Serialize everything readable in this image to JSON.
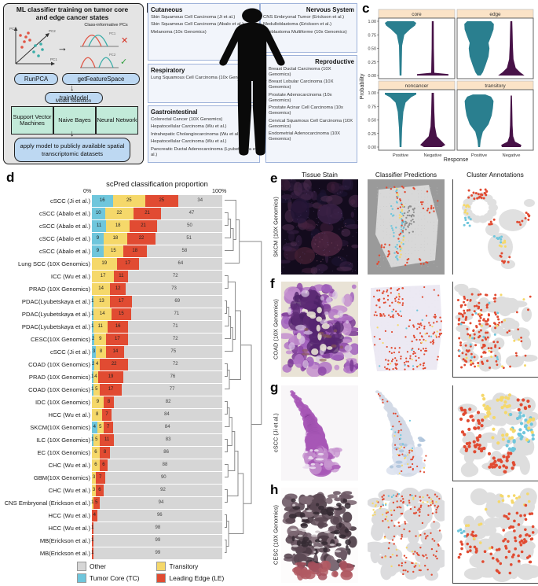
{
  "colors": {
    "tumor_core": "#6fc6dc",
    "transitory": "#f5d86a",
    "leading_edge": "#e14b32",
    "other": "#d6d6d6",
    "violin_positive": "#2a7f8f",
    "violin_negative": "#471247",
    "facet_strip": "#fbe3c7"
  },
  "panel_a": {
    "letter": "a",
    "title": "ML classifier training on tumor core and edge cancer states",
    "class_informative": "Class-informative PCs",
    "pc_labels": {
      "pc1": "PC1",
      "pc2": "PC2",
      "pc3": "PC3"
    },
    "runpca": "RunPCA",
    "getfeaturespace": "getFeatureSpace",
    "trainmodel": "trainModel",
    "model_selection": "Model Selection",
    "models": [
      "Support Vector Machines",
      "Naive Bayes",
      "Neural Network"
    ],
    "apply": "apply model to publicly available spatial transcriptomic datasets"
  },
  "panel_b": {
    "letter": "b",
    "categories": [
      {
        "name": "Cutaneous",
        "align": "left",
        "items": [
          "Skin Squamous Cell Carcinoma (Ji et al.)",
          "Skin Squamous Cell Carcinoma (Abalo et al.)",
          "Melanoma (10x Genomics)"
        ]
      },
      {
        "name": "Respiratory",
        "align": "left",
        "items": [
          "Lung Squamous Cell Carcinoma (10x Genomics)"
        ]
      },
      {
        "name": "Gastrointestinal",
        "align": "left",
        "items": [
          "Colorectal Cancer (10X Genomics)",
          "Hepatocellular Carcinoma (Wu et al.)",
          "Intrahepatic Cholangiocarcinoma (Wu et al.)",
          "Hepatocellular Carcinoma (Wu et al.)",
          "Pancreatic Ductal Adenocarcinoma (Lyubetskaya et al.)"
        ]
      },
      {
        "name": "Nervous System",
        "align": "right",
        "items": [
          "CNS Embryonal Tumor (Erickson et al.)",
          "Medulloblastoma (Erickson et al.)",
          "Glioblastoma Multiforme (10x Genomics)"
        ]
      },
      {
        "name": "Reproductive",
        "align": "right",
        "items": [
          "Breast Ductal Carcinoma (10X Genomics)",
          "Breast Lobular Carcinoma (10X Genomics)",
          "Prostate Adenocarcinoma (10x Genomics)",
          "Prostate Acinar Cell Carcinoma (10x Genomics)",
          "Cervical Squamous Cell Carcinoma (10X Genomics)",
          "Endometrial Adenocarcinoma (10X Genomics)"
        ]
      }
    ]
  },
  "panel_c": {
    "letter": "c"
  },
  "panel_d": {
    "letter": "d"
  },
  "chart_data": [
    {
      "type": "violin",
      "facets": [
        "core",
        "edge",
        "noncancer",
        "transitory"
      ],
      "groups": [
        "Positive",
        "Negative"
      ],
      "xlabel": "Response",
      "ylabel": "Probability",
      "yticks": [
        "1.00",
        "0.75",
        "0.50",
        "0.25",
        "0.00"
      ],
      "ylim": [
        0,
        1
      ],
      "distributions": {
        "core": {
          "Positive": [
            [
              0,
              0.03
            ],
            [
              0.55,
              0.05
            ],
            [
              0.75,
              0.12
            ],
            [
              0.85,
              0.3
            ],
            [
              0.92,
              0.46
            ],
            [
              0.97,
              0.5
            ],
            [
              1,
              0.42
            ]
          ],
          "Negative": [
            [
              0,
              0.5
            ],
            [
              0.025,
              0.5
            ],
            [
              0.05,
              0.05
            ],
            [
              0.5,
              0.035
            ],
            [
              1,
              0.03
            ]
          ]
        },
        "edge": {
          "Positive": [
            [
              0,
              0.05
            ],
            [
              0.06,
              0.12
            ],
            [
              0.18,
              0.2
            ],
            [
              0.35,
              0.3
            ],
            [
              0.5,
              0.33
            ],
            [
              0.6,
              0.3
            ],
            [
              0.72,
              0.38
            ],
            [
              0.85,
              0.46
            ],
            [
              0.95,
              0.47
            ],
            [
              1,
              0.38
            ]
          ],
          "Negative": [
            [
              0,
              0.42
            ],
            [
              0.06,
              0.28
            ],
            [
              0.14,
              0.14
            ],
            [
              0.3,
              0.07
            ],
            [
              0.55,
              0.05
            ],
            [
              0.8,
              0.04
            ],
            [
              1,
              0.03
            ]
          ]
        },
        "noncancer": {
          "Positive": [
            [
              0,
              0.03
            ],
            [
              0.35,
              0.05
            ],
            [
              0.65,
              0.09
            ],
            [
              0.82,
              0.16
            ],
            [
              0.92,
              0.34
            ],
            [
              0.97,
              0.5
            ],
            [
              1,
              0.5
            ]
          ],
          "Negative": [
            [
              0,
              0.28
            ],
            [
              0.04,
              0.4
            ],
            [
              0.1,
              0.3
            ],
            [
              0.2,
              0.13
            ],
            [
              0.38,
              0.07
            ],
            [
              0.65,
              0.05
            ],
            [
              1,
              0.035
            ]
          ]
        },
        "transitory": {
          "Positive": [
            [
              0,
              0.03
            ],
            [
              0.12,
              0.05
            ],
            [
              0.28,
              0.12
            ],
            [
              0.42,
              0.3
            ],
            [
              0.58,
              0.4
            ],
            [
              0.72,
              0.44
            ],
            [
              0.85,
              0.46
            ],
            [
              0.93,
              0.38
            ],
            [
              0.97,
              0.2
            ]
          ],
          "Negative": [
            [
              0,
              0.3
            ],
            [
              0.04,
              0.32
            ],
            [
              0.1,
              0.12
            ],
            [
              0.2,
              0.06
            ],
            [
              0.4,
              0.04
            ],
            [
              0.7,
              0.03
            ],
            [
              0.95,
              0.02
            ]
          ]
        }
      }
    },
    {
      "type": "bar",
      "title": "scPred classification proportion",
      "axis_min_label": "0%",
      "axis_max_label": "100%",
      "stack_order": [
        "tumor_core",
        "transitory",
        "leading_edge",
        "other"
      ],
      "legend": [
        {
          "label": "Other",
          "color_key": "other"
        },
        {
          "label": "Tumor Core (TC)",
          "color_key": "tumor_core"
        },
        {
          "label": "Transitory",
          "color_key": "transitory"
        },
        {
          "label": "Leading Edge (LE)",
          "color_key": "leading_edge"
        }
      ],
      "rows": [
        {
          "label": "cSCC (Ji et al.)",
          "tumor_core": 16,
          "transitory": 25,
          "leading_edge": 25,
          "other": 34
        },
        {
          "label": "cSCC (Abalo et al.)",
          "tumor_core": 10,
          "transitory": 22,
          "leading_edge": 21,
          "other": 47
        },
        {
          "label": "cSCC (Abalo et al.)",
          "tumor_core": 11,
          "transitory": 18,
          "leading_edge": 21,
          "other": 50
        },
        {
          "label": "cSCC (Abalo et al.)",
          "tumor_core": 9,
          "transitory": 18,
          "leading_edge": 22,
          "other": 51
        },
        {
          "label": "cSCC (Abalo et al.)",
          "tumor_core": 9,
          "transitory": 15,
          "leading_edge": 18,
          "other": 58
        },
        {
          "label": "Lung SCC (10X Genomics)",
          "tumor_core": 0,
          "transitory": 19,
          "leading_edge": 17,
          "other": 64
        },
        {
          "label": "ICC (Wu et al.)",
          "tumor_core": 0,
          "transitory": 17,
          "leading_edge": 11,
          "other": 72
        },
        {
          "label": "PRAD (10X Genomics)",
          "tumor_core": 0,
          "transitory": 14,
          "leading_edge": 12,
          "other": 73
        },
        {
          "label": "PDAC(Lyubetskaya et al.)",
          "tumor_core": 1,
          "transitory": 13,
          "leading_edge": 17,
          "other": 69
        },
        {
          "label": "PDAC(Lyubetskaya et al.)",
          "tumor_core": 1,
          "transitory": 14,
          "leading_edge": 15,
          "other": 71
        },
        {
          "label": "PDAC(Lyubetskaya et al.)",
          "tumor_core": 1,
          "transitory": 11,
          "leading_edge": 16,
          "other": 71
        },
        {
          "label": "CESC(10X Genomics)",
          "tumor_core": 2,
          "transitory": 9,
          "leading_edge": 17,
          "other": 72
        },
        {
          "label": "cSCC (Ji et al.)",
          "tumor_core": 3,
          "transitory": 8,
          "leading_edge": 14,
          "other": 75
        },
        {
          "label": "COAD (10X Genomics)",
          "tumor_core": 2,
          "transitory": 4,
          "leading_edge": 22,
          "other": 72
        },
        {
          "label": "PRAD (10X Genomics)",
          "tumor_core": 1,
          "transitory": 4,
          "leading_edge": 19,
          "other": 76
        },
        {
          "label": "COAD (10X Genomics)",
          "tumor_core": 1,
          "transitory": 5,
          "leading_edge": 17,
          "other": 77
        },
        {
          "label": "IDC (10X Genomics)",
          "tumor_core": 0,
          "transitory": 9,
          "leading_edge": 8,
          "other": 82
        },
        {
          "label": "HCC (Wu et al.)",
          "tumor_core": 0,
          "transitory": 8,
          "leading_edge": 7,
          "other": 84
        },
        {
          "label": "SKCM(10X Genomics)",
          "tumor_core": 4,
          "transitory": 5,
          "leading_edge": 7,
          "other": 84
        },
        {
          "label": "ILC (10X Genomics)",
          "tumor_core": 1,
          "transitory": 5,
          "leading_edge": 11,
          "other": 83
        },
        {
          "label": "EC (10X Genomics)",
          "tumor_core": 0,
          "transitory": 6,
          "leading_edge": 8,
          "other": 86
        },
        {
          "label": "CHC (Wu et al.)",
          "tumor_core": 0,
          "transitory": 6,
          "leading_edge": 6,
          "other": 88
        },
        {
          "label": "GBM(10X Genomics)",
          "tumor_core": 0,
          "transitory": 3,
          "leading_edge": 7,
          "other": 90
        },
        {
          "label": "CHC (Wu et al.)",
          "tumor_core": 0,
          "transitory": 3,
          "leading_edge": 6,
          "other": 92
        },
        {
          "label": "CNS Embryonal (Erickson et al.)",
          "tumor_core": 0,
          "transitory": 1,
          "leading_edge": 5,
          "other": 94
        },
        {
          "label": "HCC (Wu et al.)",
          "tumor_core": 0,
          "transitory": 0,
          "leading_edge": 4,
          "other": 96
        },
        {
          "label": "HCC (Wu et al.)",
          "tumor_core": 0,
          "transitory": 0,
          "leading_edge": 1,
          "other": 98
        },
        {
          "label": "MB(Erickson et al.)",
          "tumor_core": 0,
          "transitory": 0,
          "leading_edge": 1,
          "other": 99
        },
        {
          "label": "MB(Erickson et al.)",
          "tumor_core": 0,
          "transitory": 0,
          "leading_edge": 1,
          "other": 99
        }
      ]
    }
  ],
  "panels_eh": {
    "column_headers": [
      "Tissue Stain",
      "Classifier Predictions",
      "Cluster Annotations"
    ],
    "rows": [
      {
        "letter": "e",
        "label": "SKCM (10X Genomics)"
      },
      {
        "letter": "f",
        "label": "COAD (10X Genomics)"
      },
      {
        "letter": "g",
        "label": "cSCC (Ji et al.)"
      },
      {
        "letter": "h",
        "label": "CESC (10X Genomics)"
      }
    ]
  }
}
